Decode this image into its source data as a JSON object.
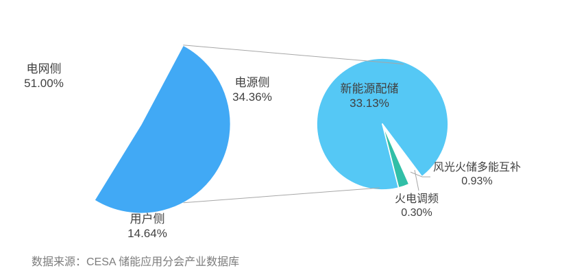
{
  "chart_data": {
    "type": "pie",
    "subtype": "pie-of-pie",
    "title": "",
    "legend_position": "none",
    "grid": false,
    "units": "%",
    "main_pie": {
      "total": 100,
      "start_angle_deg": 28,
      "slices": [
        {
          "key": "power-side",
          "name": "电源侧",
          "value": 34.36,
          "pct_text": "34.36%",
          "color": "#ED7D0E"
        },
        {
          "key": "user-side",
          "name": "用户侧",
          "value": 14.64,
          "pct_text": "14.64%",
          "color": "#0C51CB"
        },
        {
          "key": "grid-side",
          "name": "电网侧",
          "value": 51.0,
          "pct_text": "51.00%",
          "color": "#41A9F5"
        }
      ]
    },
    "secondary_pie": {
      "represents": "电源侧",
      "total": 34.36,
      "start_angle_deg": 156,
      "slices": [
        {
          "key": "renewable-storage",
          "name": "新能源配储",
          "value": 33.13,
          "pct_text": "33.13%",
          "color": "#55C8F5"
        },
        {
          "key": "thermal-frequency-regulation",
          "name": "火电调频",
          "value": 0.3,
          "pct_text": "0.30%",
          "color": "#A9D18E"
        },
        {
          "key": "multi-energy-complementary",
          "name": "风光火储多能互补",
          "value": 0.93,
          "pct_text": "0.93%",
          "color": "#31BFA7"
        }
      ]
    }
  },
  "source_note": "数据来源：CESA 储能应用分会产业数据库",
  "colors": {
    "label_text": "#404040",
    "connector_line": "#A6A6A6",
    "source_text": "#7C7C7C",
    "background": "#FFFFFF",
    "slice_border": "#FFFFFF"
  }
}
